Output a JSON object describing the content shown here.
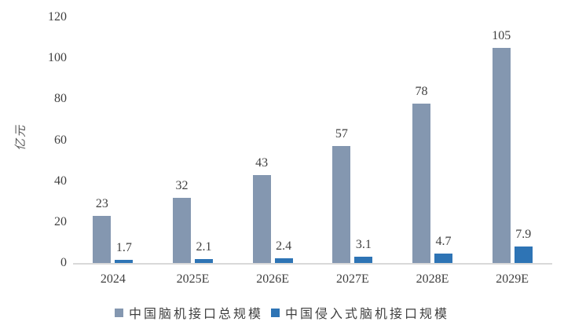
{
  "chart_data": {
    "type": "bar",
    "title": "",
    "xlabel": "",
    "ylabel": "亿元",
    "categories": [
      "2024",
      "2025E",
      "2026E",
      "2027E",
      "2028E",
      "2029E"
    ],
    "series": [
      {
        "name": "中国脑机接口总规模",
        "color": "#8497B0",
        "values": [
          23,
          32,
          43,
          57,
          78,
          105
        ],
        "labels": [
          "23",
          "32",
          "43",
          "57",
          "78",
          "105"
        ]
      },
      {
        "name": "中国侵入式脑机接口规模",
        "color": "#2E74B5",
        "values": [
          1.7,
          2.1,
          2.4,
          3.1,
          4.7,
          7.9
        ],
        "labels": [
          "1.7",
          "2.1",
          "2.4",
          "3.1",
          "4.7",
          "7.9"
        ]
      }
    ],
    "ylim": [
      0,
      120
    ],
    "yticks": [
      0,
      20,
      40,
      60,
      80,
      100,
      120
    ],
    "grid": false,
    "legend_position": "bottom"
  },
  "colors": {
    "axis_line": "#D9D9D9",
    "text": "#404040",
    "ylabel_text": "#595959"
  }
}
